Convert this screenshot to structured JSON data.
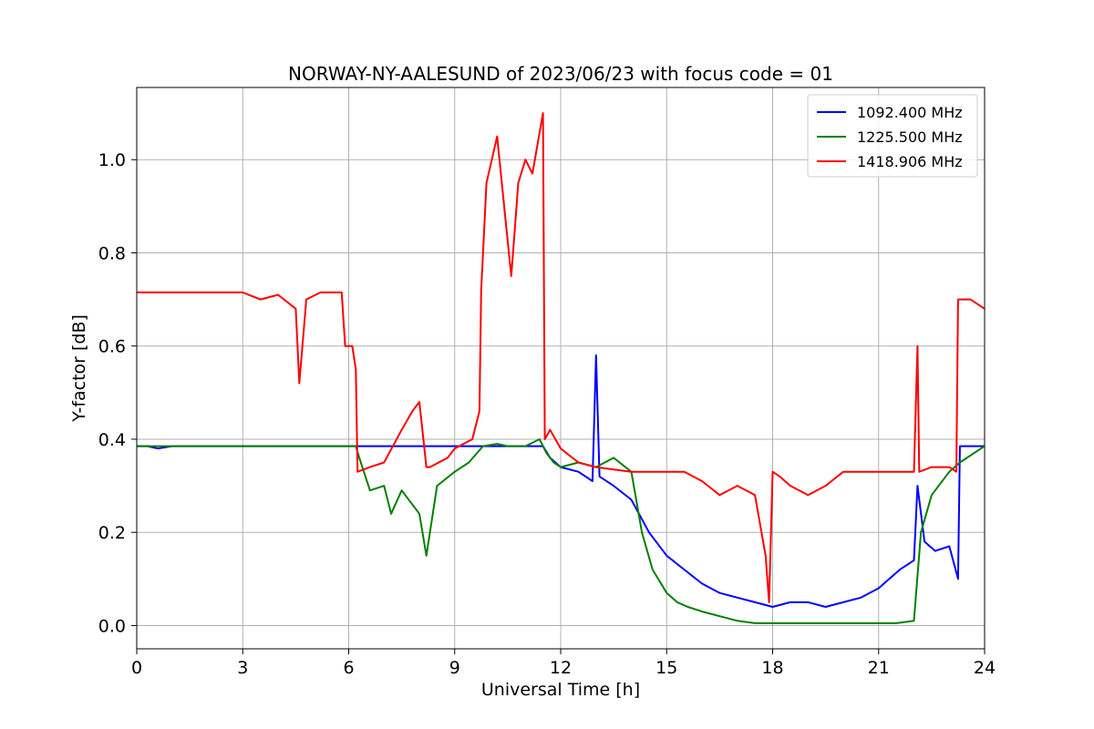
{
  "chart_data": {
    "type": "line",
    "title": "NORWAY-NY-AALESUND of 2023/06/23 with focus code = 01",
    "xlabel": "Universal Time [h]",
    "ylabel": "Y-factor [dB]",
    "xlim": [
      0,
      24
    ],
    "ylim": [
      -0.05,
      1.155
    ],
    "xticks": [
      0,
      3,
      6,
      9,
      12,
      15,
      18,
      21,
      24
    ],
    "yticks": [
      0.0,
      0.2,
      0.4,
      0.6,
      0.8,
      1.0
    ],
    "ytick_labels": [
      "0.0",
      "0.2",
      "0.4",
      "0.6",
      "0.8",
      "1.0"
    ],
    "grid": true,
    "legend_position": "top-right",
    "series": [
      {
        "name": "1092.400 MHz",
        "color": "#0000ff",
        "x": [
          0,
          0.3,
          0.6,
          1.0,
          2.0,
          3.0,
          4.0,
          5.0,
          6.0,
          6.3,
          7.0,
          8.0,
          9.0,
          9.8,
          10.5,
          11.5,
          11.7,
          12.0,
          12.5,
          12.9,
          13.0,
          13.1,
          13.5,
          14.0,
          14.5,
          15.0,
          15.5,
          16.0,
          16.5,
          17.0,
          17.5,
          18.0,
          18.5,
          19.0,
          19.5,
          20.0,
          20.5,
          21.0,
          21.3,
          21.6,
          22.0,
          22.1,
          22.3,
          22.6,
          23.0,
          23.25,
          23.3,
          24.0
        ],
        "y": [
          0.385,
          0.385,
          0.38,
          0.385,
          0.385,
          0.385,
          0.385,
          0.385,
          0.385,
          0.385,
          0.385,
          0.385,
          0.385,
          0.385,
          0.385,
          0.385,
          0.36,
          0.34,
          0.33,
          0.31,
          0.58,
          0.32,
          0.3,
          0.27,
          0.2,
          0.15,
          0.12,
          0.09,
          0.07,
          0.06,
          0.05,
          0.04,
          0.05,
          0.05,
          0.04,
          0.05,
          0.06,
          0.08,
          0.1,
          0.12,
          0.14,
          0.3,
          0.18,
          0.16,
          0.17,
          0.1,
          0.385,
          0.385
        ]
      },
      {
        "name": "1225.500 MHz",
        "color": "#008000",
        "x": [
          0,
          1.0,
          2.0,
          3.0,
          4.0,
          5.0,
          6.2,
          6.3,
          6.6,
          7.0,
          7.2,
          7.5,
          8.0,
          8.2,
          8.5,
          9.0,
          9.4,
          9.8,
          10.2,
          10.5,
          11.0,
          11.4,
          11.6,
          11.8,
          12.0,
          12.5,
          13.0,
          13.5,
          14.0,
          14.3,
          14.6,
          15.0,
          15.3,
          15.6,
          16.0,
          16.5,
          17.0,
          17.5,
          18.0,
          18.5,
          19.0,
          20.0,
          21.0,
          21.5,
          22.0,
          22.2,
          22.5,
          23.0,
          23.3,
          24.0
        ],
        "y": [
          0.385,
          0.385,
          0.385,
          0.385,
          0.385,
          0.385,
          0.385,
          0.36,
          0.29,
          0.3,
          0.24,
          0.29,
          0.24,
          0.15,
          0.3,
          0.33,
          0.35,
          0.385,
          0.39,
          0.385,
          0.385,
          0.4,
          0.37,
          0.35,
          0.34,
          0.35,
          0.34,
          0.36,
          0.33,
          0.2,
          0.12,
          0.07,
          0.05,
          0.04,
          0.03,
          0.02,
          0.01,
          0.005,
          0.005,
          0.005,
          0.005,
          0.005,
          0.005,
          0.005,
          0.01,
          0.2,
          0.28,
          0.33,
          0.35,
          0.385
        ]
      },
      {
        "name": "1418.906 MHz",
        "color": "#ff0000",
        "x": [
          0,
          1.0,
          2.0,
          3.0,
          3.5,
          4.0,
          4.5,
          4.6,
          4.8,
          5.2,
          5.8,
          5.9,
          6.1,
          6.2,
          6.25,
          6.6,
          7.0,
          7.5,
          7.8,
          8.0,
          8.2,
          8.3,
          8.8,
          9.0,
          9.5,
          9.7,
          9.75,
          9.9,
          10.2,
          10.4,
          10.6,
          10.8,
          11.0,
          11.2,
          11.5,
          11.55,
          11.7,
          12.0,
          12.5,
          13.0,
          14.0,
          15.0,
          15.5,
          16.0,
          16.5,
          17.0,
          17.5,
          17.8,
          17.9,
          18.0,
          18.2,
          18.5,
          19.0,
          19.5,
          20.0,
          21.0,
          21.5,
          22.0,
          22.1,
          22.15,
          22.5,
          23.0,
          23.2,
          23.25,
          23.6,
          24.0
        ],
        "y": [
          0.715,
          0.715,
          0.715,
          0.715,
          0.7,
          0.71,
          0.68,
          0.52,
          0.7,
          0.715,
          0.715,
          0.6,
          0.6,
          0.55,
          0.33,
          0.34,
          0.35,
          0.42,
          0.46,
          0.48,
          0.34,
          0.34,
          0.36,
          0.38,
          0.4,
          0.46,
          0.72,
          0.95,
          1.05,
          0.9,
          0.75,
          0.95,
          1.0,
          0.97,
          1.1,
          0.4,
          0.42,
          0.38,
          0.35,
          0.34,
          0.33,
          0.33,
          0.33,
          0.31,
          0.28,
          0.3,
          0.28,
          0.15,
          0.05,
          0.33,
          0.32,
          0.3,
          0.28,
          0.3,
          0.33,
          0.33,
          0.33,
          0.33,
          0.6,
          0.33,
          0.34,
          0.34,
          0.33,
          0.7,
          0.7,
          0.68
        ]
      }
    ]
  }
}
